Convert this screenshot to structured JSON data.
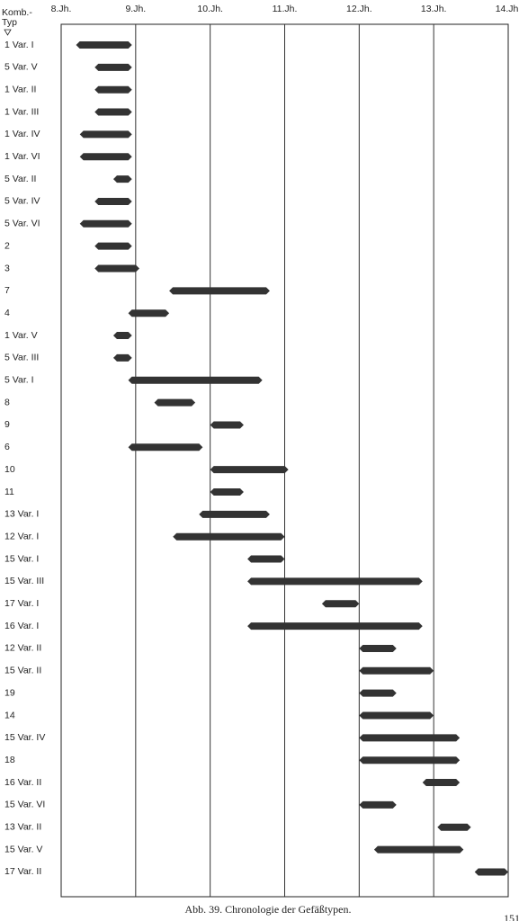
{
  "chart_data": {
    "type": "range",
    "y_label_lines": [
      "Komb.-",
      "Typ"
    ],
    "caption": "Abb. 39.  Chronologie der Gefäßtypen.",
    "page_number": "151",
    "color": "#333333",
    "xlim": [
      8,
      14
    ],
    "xticks": [
      {
        "value": 8,
        "label": "8.Jh."
      },
      {
        "value": 9,
        "label": "9.Jh."
      },
      {
        "value": 10,
        "label": "10.Jh."
      },
      {
        "value": 11,
        "label": "11.Jh."
      },
      {
        "value": 12,
        "label": "12.Jh."
      },
      {
        "value": 13,
        "label": "13.Jh."
      },
      {
        "value": 14,
        "label": "14.Jh."
      }
    ],
    "grid": true,
    "categories": [
      "1 Var. I",
      "5 Var. V",
      "1 Var. II",
      "1 Var. III",
      "1 Var. IV",
      "1 Var. VI",
      "5 Var. II",
      "5 Var. IV",
      "5 Var. VI",
      "2",
      "3",
      "7",
      "4",
      "1 Var. V",
      "5 Var. III",
      "5 Var. I",
      "8",
      "9",
      "6",
      "10",
      "11",
      "13 Var. I",
      "12 Var. I",
      "15 Var. I",
      "15 Var. III",
      "17 Var. I",
      "16 Var. I",
      "12 Var. II",
      "15 Var. II",
      "19",
      "14",
      "15 Var. IV",
      "18",
      "16 Var. II",
      "15 Var. VI",
      "13 Var. II",
      "15 Var. V",
      "17 Var. II"
    ],
    "start": [
      8.2,
      8.45,
      8.45,
      8.45,
      8.25,
      8.25,
      8.7,
      8.45,
      8.25,
      8.45,
      8.45,
      9.45,
      8.9,
      8.7,
      8.7,
      8.9,
      9.25,
      10.0,
      8.9,
      10.0,
      10.0,
      9.85,
      9.5,
      10.5,
      10.5,
      11.5,
      10.5,
      12.0,
      12.0,
      12.0,
      12.0,
      12.0,
      12.0,
      12.85,
      12.0,
      13.05,
      12.2,
      13.55
    ],
    "end": [
      8.95,
      8.95,
      8.95,
      8.95,
      8.95,
      8.95,
      8.95,
      8.95,
      8.95,
      8.95,
      9.05,
      10.8,
      9.45,
      8.95,
      8.95,
      10.7,
      9.8,
      10.45,
      9.9,
      11.05,
      10.45,
      10.8,
      11.0,
      11.0,
      12.85,
      12.0,
      12.85,
      12.5,
      13.0,
      12.5,
      13.0,
      13.35,
      13.35,
      13.35,
      12.5,
      13.5,
      13.4,
      14.0
    ]
  }
}
